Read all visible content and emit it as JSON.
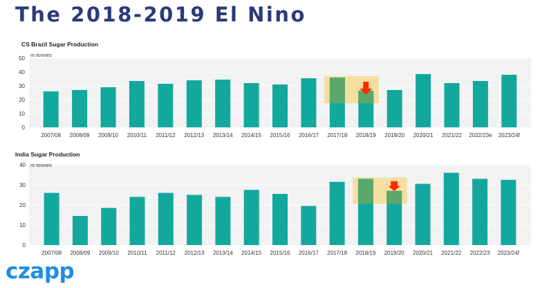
{
  "page": {
    "title": "The 2018-2019 El Nino",
    "logo": "czapp"
  },
  "colors": {
    "bar": "#13a89e",
    "plot_bg": "#f2f2f2",
    "highlight": "#f5dfa0",
    "highlight_bar": "#5aa86b",
    "arrow": "#ff2a00",
    "title": "#2b3a7a",
    "logo": "#1e8fe0"
  },
  "chart_data": [
    {
      "type": "bar",
      "title": "CS Brazil Sugar Production",
      "unit_label": "m tonnes",
      "categories": [
        "2007/08",
        "2008/09",
        "2009/10",
        "2010/11",
        "2011/12",
        "2012/13",
        "2013/14",
        "2014/15",
        "2015/16",
        "2016/17",
        "2017/18",
        "2018/19",
        "2019/20",
        "2020/21",
        "2021/22",
        "2022/23e",
        "2023/24f"
      ],
      "values": [
        26,
        27,
        29,
        33.5,
        31.5,
        34,
        34.5,
        32,
        31,
        35.5,
        36,
        26.5,
        27,
        38.5,
        32,
        33.5,
        38
      ],
      "ylim": [
        0,
        50
      ],
      "yticks": [
        0,
        10,
        20,
        30,
        40,
        50
      ],
      "grid": true,
      "highlight": {
        "categories": [
          "2017/18",
          "2018/19"
        ],
        "arrow_on": "2018/19"
      }
    },
    {
      "type": "bar",
      "title": "India Sugar Production",
      "unit_label": "m tonnes",
      "categories": [
        "2007/08",
        "2008/09",
        "2009/10",
        "2010/11",
        "2011/12",
        "2012/13",
        "2013/14",
        "2014/15",
        "2015/16",
        "2016/17",
        "2017/18",
        "2018/19",
        "2019/20",
        "2020/21",
        "2021/22",
        "2022/23",
        "2023/24f"
      ],
      "values": [
        26,
        14.5,
        18.5,
        24,
        26,
        25,
        24,
        27.5,
        25.5,
        19.5,
        31.5,
        33,
        27,
        30.5,
        36,
        33,
        32.5
      ],
      "ylim": [
        0,
        40
      ],
      "yticks": [
        0,
        10,
        20,
        30,
        40
      ],
      "grid": true,
      "highlight": {
        "categories": [
          "2018/19",
          "2019/20"
        ],
        "arrow_on": "2019/20"
      }
    }
  ]
}
